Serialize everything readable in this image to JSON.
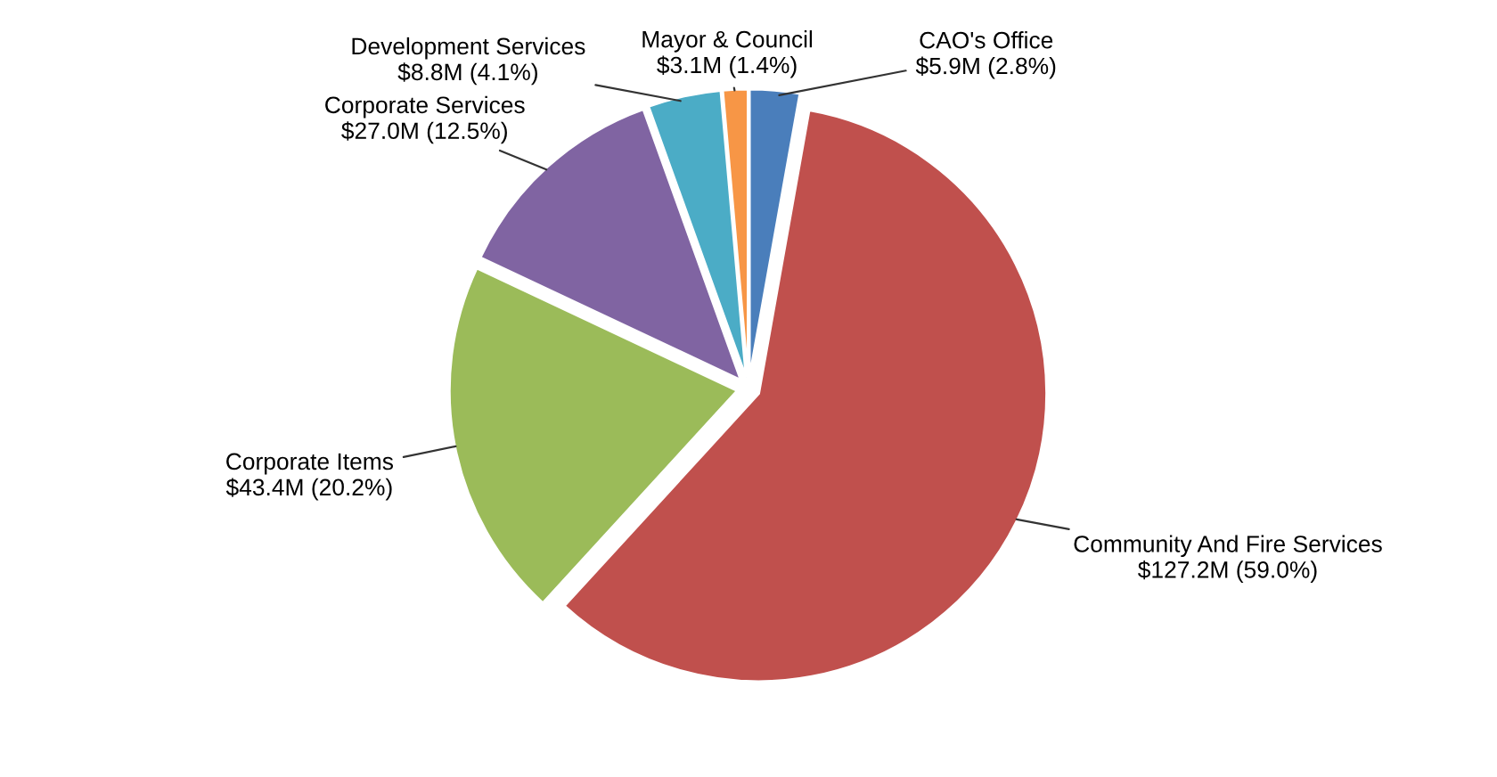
{
  "chart_data": {
    "type": "pie",
    "categories": [
      "CAO's Office",
      "Community And Fire Services",
      "Corporate Items",
      "Corporate Services",
      "Development Services",
      "Mayor & Council"
    ],
    "values": [
      2.8,
      59.0,
      20.2,
      12.5,
      4.1,
      1.4
    ],
    "value_labels": [
      "$5.9M (2.8%)",
      "$127.2M (59.0%)",
      "$43.4M (20.2%)",
      "$27.0M (12.5%)",
      "$8.8M (4.1%)",
      "$3.1M (1.4%)"
    ],
    "colors": [
      "#4a7ebb",
      "#c0504d",
      "#9bbb59",
      "#8064a2",
      "#4bacc6",
      "#f79646"
    ],
    "legend": false
  }
}
